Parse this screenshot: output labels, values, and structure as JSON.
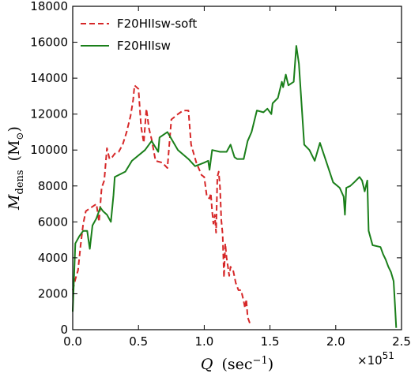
{
  "chart_data": {
    "type": "line",
    "xlabel_symbol": "Q",
    "xlabel_unit": "(sec",
    "xlabel_unit_exp": "−1",
    "xlabel_close": ")",
    "ylabel_symbol": "M",
    "ylabel_sub": "dens",
    "ylabel_unit_open": "(M",
    "ylabel_unit_sub": "⊙",
    "ylabel_unit_close": ")",
    "x_offset_base": "×10",
    "x_offset_exp": "51",
    "xlim": [
      0,
      2.5
    ],
    "ylim": [
      0,
      18000
    ],
    "xticks": [
      0.0,
      0.5,
      1.0,
      1.5,
      2.0,
      2.5
    ],
    "xtick_labels": [
      "0.0",
      "0.5",
      "1.0",
      "1.5",
      "2.0",
      "2.5"
    ],
    "yticks": [
      0,
      2000,
      4000,
      6000,
      8000,
      10000,
      12000,
      14000,
      16000,
      18000
    ],
    "ytick_labels": [
      "0",
      "2000",
      "4000",
      "6000",
      "8000",
      "10000",
      "12000",
      "14000",
      "16000",
      "18000"
    ],
    "grid": false,
    "legend_position": "upper-left",
    "series": [
      {
        "name": "F20HIIsw-soft",
        "color": "#d62728",
        "style": "dashed",
        "points": [
          [
            0.0,
            2200
          ],
          [
            0.02,
            2800
          ],
          [
            0.04,
            3300
          ],
          [
            0.06,
            4700
          ],
          [
            0.08,
            5900
          ],
          [
            0.1,
            6600
          ],
          [
            0.14,
            6800
          ],
          [
            0.18,
            7000
          ],
          [
            0.2,
            6000
          ],
          [
            0.22,
            7900
          ],
          [
            0.24,
            8300
          ],
          [
            0.26,
            10100
          ],
          [
            0.28,
            9500
          ],
          [
            0.3,
            9600
          ],
          [
            0.32,
            9800
          ],
          [
            0.35,
            9900
          ],
          [
            0.38,
            10300
          ],
          [
            0.41,
            11000
          ],
          [
            0.44,
            11900
          ],
          [
            0.46,
            12800
          ],
          [
            0.47,
            13600
          ],
          [
            0.5,
            13400
          ],
          [
            0.52,
            11300
          ],
          [
            0.54,
            10400
          ],
          [
            0.56,
            12300
          ],
          [
            0.58,
            11200
          ],
          [
            0.6,
            10600
          ],
          [
            0.63,
            9400
          ],
          [
            0.68,
            9300
          ],
          [
            0.72,
            9000
          ],
          [
            0.75,
            11700
          ],
          [
            0.8,
            12000
          ],
          [
            0.84,
            12200
          ],
          [
            0.88,
            12200
          ],
          [
            0.9,
            10300
          ],
          [
            0.94,
            9300
          ],
          [
            0.98,
            8600
          ],
          [
            1.0,
            8500
          ],
          [
            1.02,
            7400
          ],
          [
            1.04,
            7300
          ],
          [
            1.05,
            7600
          ],
          [
            1.06,
            6600
          ],
          [
            1.07,
            5900
          ],
          [
            1.08,
            6400
          ],
          [
            1.09,
            5400
          ],
          [
            1.1,
            8500
          ],
          [
            1.11,
            8800
          ],
          [
            1.12,
            7900
          ],
          [
            1.13,
            6100
          ],
          [
            1.14,
            5300
          ],
          [
            1.15,
            2900
          ],
          [
            1.16,
            4800
          ],
          [
            1.17,
            4000
          ],
          [
            1.18,
            3500
          ],
          [
            1.19,
            3000
          ],
          [
            1.2,
            3500
          ],
          [
            1.22,
            3300
          ],
          [
            1.24,
            2600
          ],
          [
            1.26,
            2200
          ],
          [
            1.28,
            2200
          ],
          [
            1.3,
            1600
          ],
          [
            1.31,
            1200
          ],
          [
            1.32,
            1700
          ],
          [
            1.33,
            700
          ],
          [
            1.35,
            300
          ]
        ]
      },
      {
        "name": "F20HIIsw",
        "color": "#1a7f1a",
        "style": "solid",
        "points": [
          [
            0.0,
            1000
          ],
          [
            0.02,
            4800
          ],
          [
            0.05,
            5200
          ],
          [
            0.08,
            5500
          ],
          [
            0.11,
            5500
          ],
          [
            0.13,
            4500
          ],
          [
            0.15,
            5800
          ],
          [
            0.18,
            6200
          ],
          [
            0.21,
            6800
          ],
          [
            0.23,
            6600
          ],
          [
            0.26,
            6400
          ],
          [
            0.29,
            6000
          ],
          [
            0.31,
            7500
          ],
          [
            0.32,
            8500
          ],
          [
            0.4,
            8800
          ],
          [
            0.45,
            9400
          ],
          [
            0.55,
            10000
          ],
          [
            0.6,
            10500
          ],
          [
            0.65,
            9900
          ],
          [
            0.66,
            10700
          ],
          [
            0.72,
            11000
          ],
          [
            0.8,
            10000
          ],
          [
            0.88,
            9500
          ],
          [
            0.93,
            9100
          ],
          [
            1.0,
            9300
          ],
          [
            1.03,
            9400
          ],
          [
            1.04,
            8900
          ],
          [
            1.06,
            10000
          ],
          [
            1.12,
            9900
          ],
          [
            1.17,
            9900
          ],
          [
            1.2,
            10300
          ],
          [
            1.23,
            9600
          ],
          [
            1.25,
            9500
          ],
          [
            1.3,
            9500
          ],
          [
            1.33,
            10500
          ],
          [
            1.36,
            11000
          ],
          [
            1.4,
            12200
          ],
          [
            1.45,
            12100
          ],
          [
            1.48,
            12300
          ],
          [
            1.51,
            12000
          ],
          [
            1.52,
            12600
          ],
          [
            1.56,
            12900
          ],
          [
            1.59,
            13800
          ],
          [
            1.6,
            13500
          ],
          [
            1.62,
            14200
          ],
          [
            1.64,
            13600
          ],
          [
            1.68,
            13800
          ],
          [
            1.7,
            15800
          ],
          [
            1.72,
            14800
          ],
          [
            1.76,
            10300
          ],
          [
            1.8,
            10000
          ],
          [
            1.84,
            9400
          ],
          [
            1.88,
            10400
          ],
          [
            1.93,
            9300
          ],
          [
            1.98,
            8200
          ],
          [
            2.03,
            7900
          ],
          [
            2.06,
            7400
          ],
          [
            2.07,
            6400
          ],
          [
            2.08,
            7900
          ],
          [
            2.11,
            8000
          ],
          [
            2.14,
            8200
          ],
          [
            2.18,
            8500
          ],
          [
            2.2,
            8300
          ],
          [
            2.22,
            7700
          ],
          [
            2.24,
            8300
          ],
          [
            2.25,
            5500
          ],
          [
            2.28,
            4700
          ],
          [
            2.34,
            4600
          ],
          [
            2.36,
            4200
          ],
          [
            2.38,
            3900
          ],
          [
            2.4,
            3500
          ],
          [
            2.42,
            3200
          ],
          [
            2.44,
            2700
          ],
          [
            2.45,
            1400
          ],
          [
            2.46,
            100
          ]
        ]
      }
    ]
  }
}
